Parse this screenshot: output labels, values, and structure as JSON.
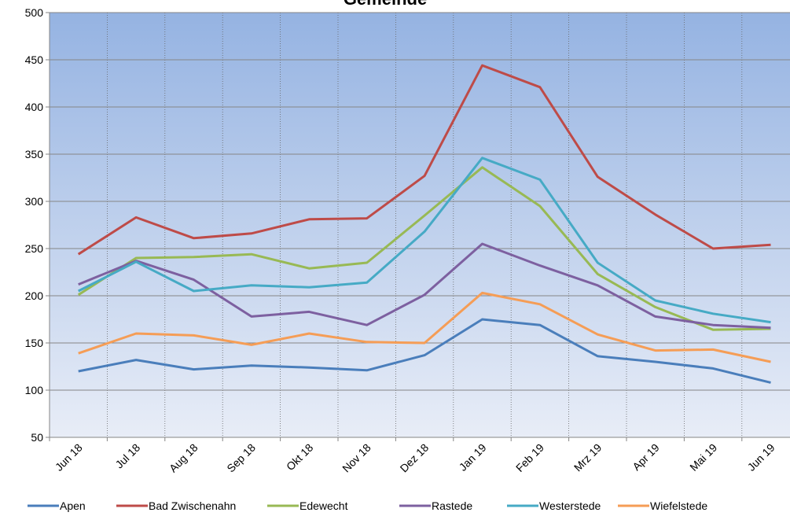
{
  "chart_data": {
    "type": "line",
    "title": "Gemeinde",
    "categories": [
      "Jun 18",
      "Jul 18",
      "Aug 18",
      "Sep 18",
      "Okt 18",
      "Nov 18",
      "Dez 18",
      "Jan 19",
      "Feb 19",
      "Mrz 19",
      "Apr 19",
      "Mai 19",
      "Jun 19"
    ],
    "series": [
      {
        "name": "Apen",
        "color": "#4a7ebb",
        "values": [
          120,
          132,
          122,
          126,
          124,
          121,
          137,
          175,
          169,
          136,
          130,
          123,
          108
        ]
      },
      {
        "name": "Bad Zwischenahn",
        "color": "#be4b48",
        "values": [
          244,
          283,
          261,
          266,
          281,
          282,
          327,
          444,
          421,
          326,
          286,
          250,
          254
        ]
      },
      {
        "name": "Edewecht",
        "color": "#98b954",
        "values": [
          201,
          240,
          241,
          244,
          229,
          235,
          285,
          336,
          295,
          223,
          188,
          164,
          165
        ]
      },
      {
        "name": "Rastede",
        "color": "#7d60a0",
        "values": [
          212,
          237,
          217,
          178,
          183,
          169,
          201,
          255,
          232,
          211,
          178,
          169,
          166
        ]
      },
      {
        "name": "Westerstede",
        "color": "#46aac5",
        "values": [
          205,
          236,
          205,
          211,
          209,
          214,
          268,
          346,
          323,
          235,
          195,
          181,
          172
        ]
      },
      {
        "name": "Wiefelstede",
        "color": "#f59d56",
        "values": [
          139,
          160,
          158,
          148,
          160,
          151,
          150,
          203,
          191,
          159,
          142,
          143,
          130
        ]
      }
    ],
    "ylim": [
      50,
      500
    ],
    "yticks": [
      50,
      100,
      150,
      200,
      250,
      300,
      350,
      400,
      450,
      500
    ],
    "grid": true
  }
}
